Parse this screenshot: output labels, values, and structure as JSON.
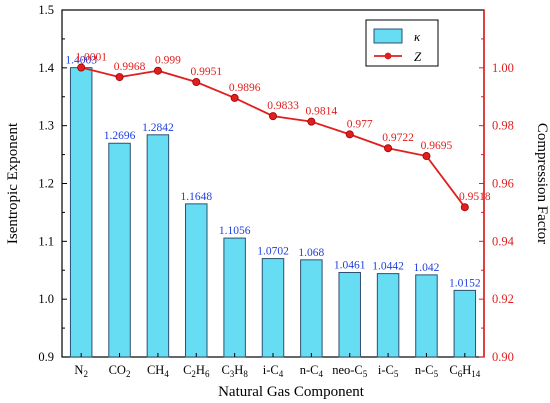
{
  "chart_data": {
    "type": "bar",
    "title": "",
    "xlabel": "Natural Gas Component",
    "ylabel_left": "Isentropic Exponent",
    "ylabel_right": "Compression Factor",
    "categories": [
      {
        "base": "N",
        "sub": "2",
        "rest": ""
      },
      {
        "base": "CO",
        "sub": "2",
        "rest": ""
      },
      {
        "base": "CH",
        "sub": "4",
        "rest": ""
      },
      {
        "base": "C",
        "sub": "2",
        "rest": "H",
        "sub2": "6"
      },
      {
        "base": "C",
        "sub": "3",
        "rest": "H",
        "sub2": "8"
      },
      {
        "base": "i-C",
        "sub": "4",
        "rest": ""
      },
      {
        "base": "n-C",
        "sub": "4",
        "rest": ""
      },
      {
        "base": "neo-C",
        "sub": "5",
        "rest": ""
      },
      {
        "base": "i-C",
        "sub": "5",
        "rest": ""
      },
      {
        "base": "n-C",
        "sub": "5",
        "rest": ""
      },
      {
        "base": "C",
        "sub": "6",
        "rest": "H",
        "sub2": "14"
      }
    ],
    "series": [
      {
        "name": "κ",
        "type": "bar",
        "axis": "left",
        "values": [
          1.4003,
          1.2696,
          1.2842,
          1.1648,
          1.1056,
          1.0702,
          1.068,
          1.0461,
          1.0442,
          1.042,
          1.0152
        ],
        "labels": [
          "1.4003",
          "1.2696",
          "1.2842",
          "1.1648",
          "1.1056",
          "1.0702",
          "1.068",
          "1.0461",
          "1.0442",
          "1.042",
          "1.0152"
        ]
      },
      {
        "name": "Z",
        "type": "line",
        "axis": "right",
        "values": [
          1.0001,
          0.9968,
          0.999,
          0.9951,
          0.9896,
          0.9833,
          0.9814,
          0.977,
          0.9722,
          0.9695,
          0.9518
        ],
        "labels": [
          "1.0001",
          "0.9968",
          "0.999",
          "0.9951",
          "0.9896",
          "0.9833",
          "0.9814",
          "0.977",
          "0.9722",
          "0.9695",
          "0.9518"
        ]
      }
    ],
    "ylim_left": [
      0.9,
      1.5
    ],
    "yticks_left": [
      "0.9",
      "1.0",
      "1.1",
      "1.2",
      "1.3",
      "1.4",
      "1.5"
    ],
    "ylim_right": [
      0.9,
      1.02
    ],
    "yticks_right": [
      "0.90",
      "0.92",
      "0.94",
      "0.96",
      "0.98",
      "1.00"
    ],
    "legend_position": "top-right",
    "colors": {
      "bar_fill": "#66ddf2",
      "bar_stroke": "#2f4f6f",
      "bar_label": "#1f3ee0",
      "line": "#e01f1f",
      "right_axis": "#e01f1f",
      "left_axis": "#000000"
    }
  }
}
